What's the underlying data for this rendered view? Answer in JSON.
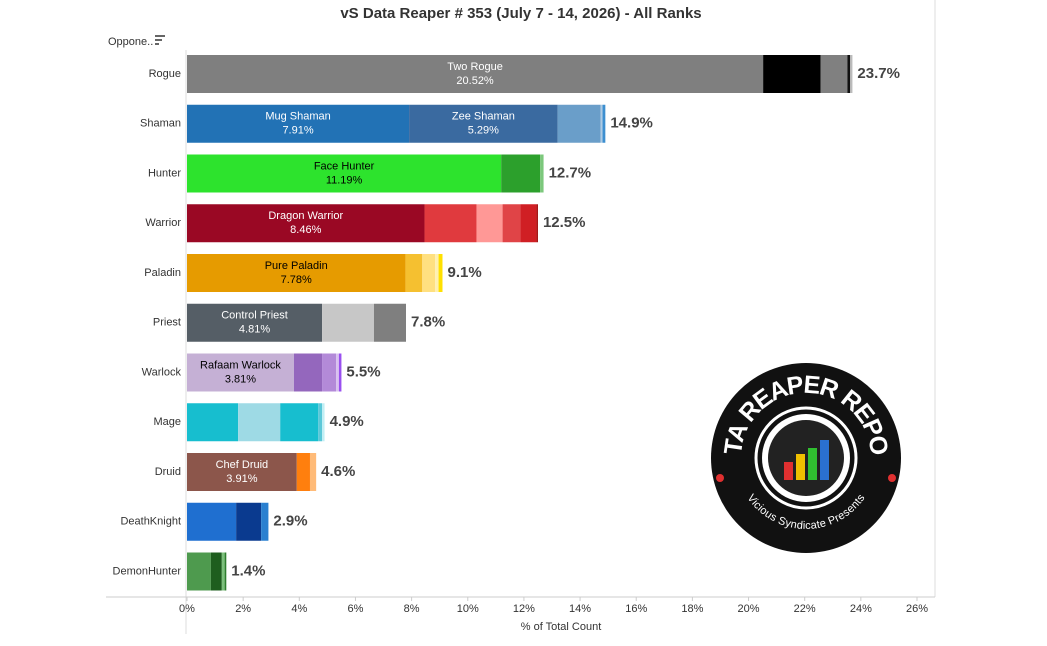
{
  "chart_data": {
    "type": "stacked-bar-horizontal",
    "title": "vS Data Reaper # 353 (July 7 - 14, 2026) - All Ranks",
    "y_header": "Oppone..",
    "xlabel": "% of Total Count",
    "xlim": [
      0,
      26
    ],
    "xticks": [
      {
        "value": 0,
        "label": "0%"
      },
      {
        "value": 2,
        "label": "2%"
      },
      {
        "value": 4,
        "label": "4%"
      },
      {
        "value": 6,
        "label": "6%"
      },
      {
        "value": 8,
        "label": "8%"
      },
      {
        "value": 10,
        "label": "10%"
      },
      {
        "value": 12,
        "label": "12%"
      },
      {
        "value": 14,
        "label": "14%"
      },
      {
        "value": 16,
        "label": "16%"
      },
      {
        "value": 18,
        "label": "18%"
      },
      {
        "value": 20,
        "label": "20%"
      },
      {
        "value": 22,
        "label": "22%"
      },
      {
        "value": 24,
        "label": "24%"
      },
      {
        "value": 26,
        "label": "26%"
      }
    ],
    "logo_text": {
      "title": "DATA REAPER REPORT",
      "subtitle": "Vicious Syndicate Presents"
    },
    "rows": [
      {
        "category": "Rogue",
        "total": 23.7,
        "total_label": "23.7%",
        "segments": [
          {
            "name": "Two Rogue",
            "value": 20.52,
            "value_label": "20.52%",
            "color": "#7f7f7f"
          },
          {
            "value": 2.05,
            "color": "#000000"
          },
          {
            "value": 0.95,
            "color": "#808080"
          },
          {
            "value": 0.1,
            "color": "#111111"
          },
          {
            "value": 0.08,
            "color": "#bbbbbb"
          }
        ]
      },
      {
        "category": "Shaman",
        "total": 14.9,
        "total_label": "14.9%",
        "segments": [
          {
            "name": "Mug Shaman",
            "value": 7.91,
            "value_label": "7.91%",
            "color": "#2272b5"
          },
          {
            "name": "Zee Shaman",
            "value": 5.29,
            "value_label": "5.29%",
            "color": "#3a6aa0"
          },
          {
            "value": 1.53,
            "color": "#6a9ec9"
          },
          {
            "value": 0.07,
            "color": "#aecbe4"
          },
          {
            "value": 0.1,
            "color": "#3d8fd0"
          }
        ]
      },
      {
        "category": "Hunter",
        "total": 12.7,
        "total_label": "12.7%",
        "segments": [
          {
            "name": "Face Hunter",
            "value": 11.19,
            "value_label": "11.19%",
            "color": "#2de32d"
          },
          {
            "value": 1.39,
            "color": "#2ca02c"
          },
          {
            "value": 0.12,
            "color": "#7cc87c"
          }
        ]
      },
      {
        "category": "Warrior",
        "total": 12.5,
        "total_label": "12.5%",
        "segments": [
          {
            "name": "Dragon Warrior",
            "value": 8.46,
            "value_label": "8.46%",
            "color": "#9a0824"
          },
          {
            "value": 1.85,
            "color": "#e03a3e"
          },
          {
            "value": 0.93,
            "color": "#ff9896"
          },
          {
            "value": 0.64,
            "color": "#e04447"
          },
          {
            "value": 0.57,
            "color": "#d01f24"
          },
          {
            "value": 0.05,
            "color": "#a01010"
          }
        ]
      },
      {
        "category": "Paladin",
        "total": 9.1,
        "total_label": "9.1%",
        "segments": [
          {
            "name": "Pure Paladin",
            "value": 7.78,
            "value_label": "7.78%",
            "color": "#e69b00"
          },
          {
            "value": 0.6,
            "color": "#f5c030"
          },
          {
            "value": 0.46,
            "color": "#ffe080"
          },
          {
            "value": 0.12,
            "color": "#fff0b0"
          },
          {
            "value": 0.14,
            "color": "#ffe000"
          }
        ]
      },
      {
        "category": "Priest",
        "total": 7.8,
        "total_label": "7.8%",
        "segments": [
          {
            "name": "Control Priest",
            "value": 4.81,
            "value_label": "4.81%",
            "color": "#555e66"
          },
          {
            "value": 1.85,
            "color": "#c7c7c7"
          },
          {
            "value": 1.14,
            "color": "#7f7f7f"
          }
        ]
      },
      {
        "category": "Warlock",
        "total": 5.5,
        "total_label": "5.5%",
        "segments": [
          {
            "name": "Rafaam Warlock",
            "value": 3.81,
            "value_label": "3.81%",
            "color": "#c5b0d5"
          },
          {
            "value": 1.0,
            "color": "#9467bd"
          },
          {
            "value": 0.5,
            "color": "#b38ad8"
          },
          {
            "value": 0.1,
            "color": "#d8c0f0"
          },
          {
            "value": 0.09,
            "color": "#9a50f0"
          }
        ]
      },
      {
        "category": "Mage",
        "total": 4.9,
        "total_label": "4.9%",
        "segments": [
          {
            "value": 1.82,
            "color": "#17becf"
          },
          {
            "value": 1.5,
            "color": "#9edae5"
          },
          {
            "value": 1.35,
            "color": "#17becf"
          },
          {
            "value": 0.14,
            "color": "#5cc8d8"
          },
          {
            "value": 0.09,
            "color": "#c0eef4"
          }
        ]
      },
      {
        "category": "Druid",
        "total": 4.6,
        "total_label": "4.6%",
        "segments": [
          {
            "name": "Chef Druid",
            "value": 3.91,
            "value_label": "3.91%",
            "color": "#8c564b"
          },
          {
            "value": 0.47,
            "color": "#ff7f0e"
          },
          {
            "value": 0.22,
            "color": "#ffbb78"
          }
        ]
      },
      {
        "category": "DeathKnight",
        "total": 2.9,
        "total_label": "2.9%",
        "segments": [
          {
            "value": 1.75,
            "color": "#1f6fd0"
          },
          {
            "value": 0.89,
            "color": "#0a3a8f"
          },
          {
            "value": 0.26,
            "color": "#2a80d0"
          }
        ]
      },
      {
        "category": "DemonHunter",
        "total": 1.4,
        "total_label": "1.4%",
        "segments": [
          {
            "value": 0.85,
            "color": "#4e9a4e"
          },
          {
            "value": 0.39,
            "color": "#1e5e1e"
          },
          {
            "value": 0.1,
            "color": "#7cc07c"
          },
          {
            "value": 0.06,
            "color": "#2e7e2e"
          }
        ]
      }
    ]
  }
}
